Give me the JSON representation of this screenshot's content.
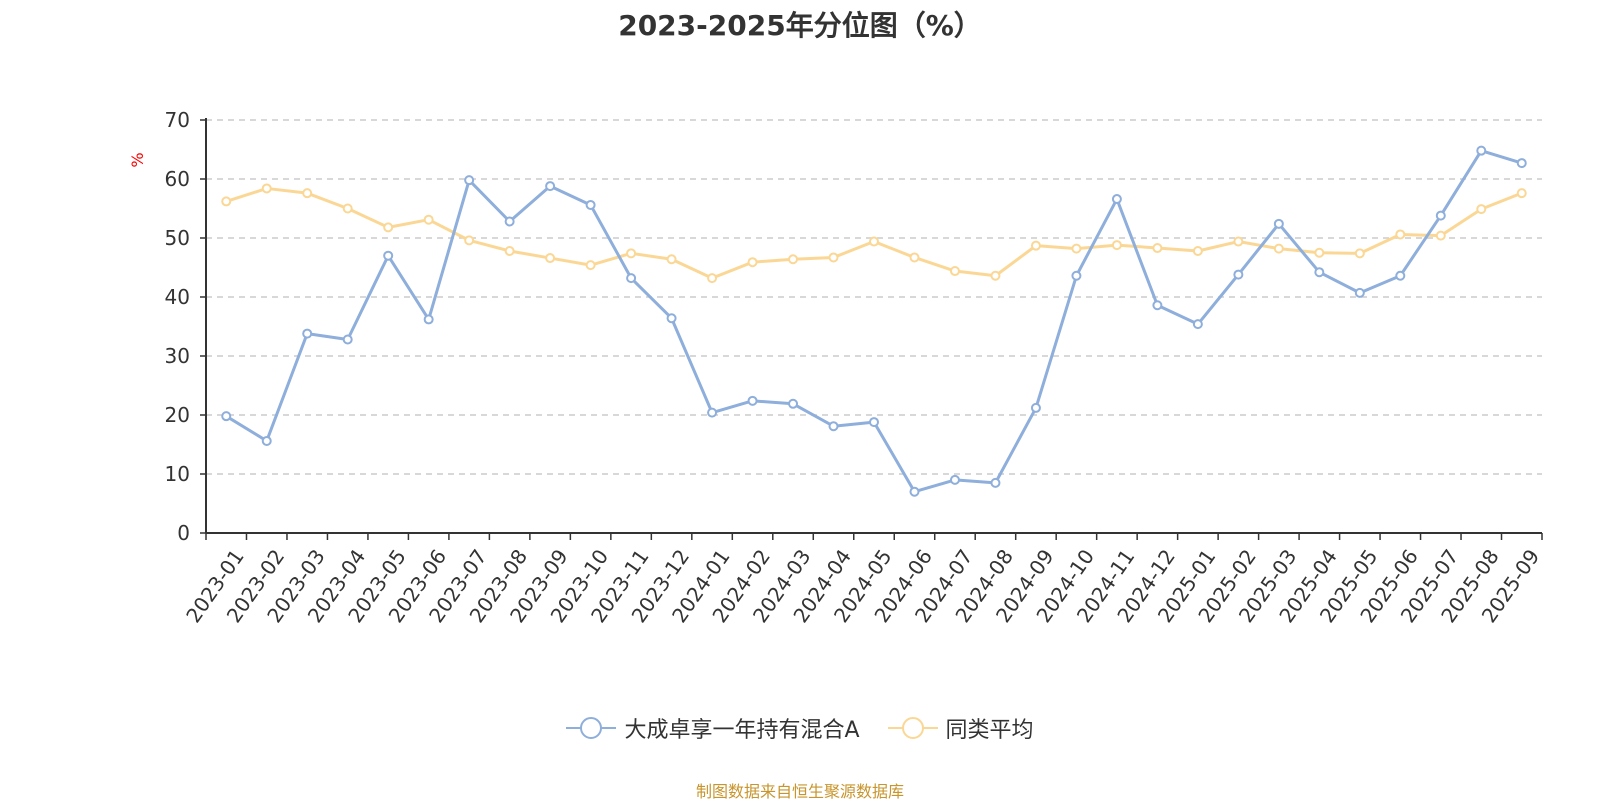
{
  "chart_data": {
    "type": "line",
    "title": "2023-2025年分位图（%）",
    "ylabel": "%",
    "xlabel": "",
    "ylim": [
      0,
      70
    ],
    "yticks": [
      0,
      10,
      20,
      30,
      40,
      50,
      60,
      70
    ],
    "grid": true,
    "legend_position": "bottom",
    "categories": [
      "2023-01",
      "2023-02",
      "2023-03",
      "2023-04",
      "2023-05",
      "2023-06",
      "2023-07",
      "2023-08",
      "2023-09",
      "2023-10",
      "2023-11",
      "2023-12",
      "2024-01",
      "2024-02",
      "2024-03",
      "2024-04",
      "2024-05",
      "2024-06",
      "2024-07",
      "2024-08",
      "2024-09",
      "2024-10",
      "2024-11",
      "2024-12",
      "2025-01",
      "2025-02",
      "2025-03",
      "2025-04",
      "2025-05",
      "2025-06",
      "2025-07",
      "2025-08",
      "2025-09"
    ],
    "series": [
      {
        "name": "大成卓享一年持有混合A",
        "color": "#8eaedb",
        "values": [
          19.8,
          15.6,
          33.8,
          32.8,
          47.0,
          36.2,
          59.8,
          52.8,
          58.8,
          55.6,
          43.2,
          36.4,
          20.4,
          22.4,
          21.9,
          18.1,
          18.8,
          7.0,
          9.0,
          8.5,
          21.2,
          43.6,
          56.6,
          38.6,
          35.4,
          43.8,
          52.4,
          44.2,
          40.7,
          43.6,
          53.8,
          64.8,
          62.7
        ]
      },
      {
        "name": "同类平均",
        "color": "#fbd795",
        "values": [
          56.2,
          58.4,
          57.6,
          55.0,
          51.8,
          53.1,
          49.6,
          47.8,
          46.6,
          45.4,
          47.4,
          46.4,
          43.2,
          45.9,
          46.4,
          46.7,
          49.4,
          46.7,
          44.4,
          43.6,
          48.7,
          48.2,
          48.8,
          48.3,
          47.8,
          49.4,
          48.2,
          47.5,
          47.4,
          50.6,
          50.4,
          54.9,
          57.6
        ]
      }
    ]
  },
  "source_note": "制图数据来自恒生聚源数据库"
}
